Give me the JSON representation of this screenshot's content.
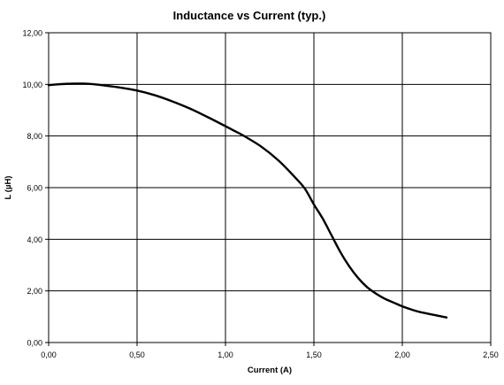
{
  "chart_data": {
    "type": "line",
    "title": "Inductance vs Current (typ.)",
    "xlabel": "Current (A)",
    "ylabel": "L (µH)",
    "xlim": [
      0,
      2.5
    ],
    "ylim": [
      0,
      12
    ],
    "x_ticks": [
      0,
      0.5,
      1.0,
      1.5,
      2.0,
      2.5
    ],
    "x_tick_labels": [
      "0,00",
      "0,50",
      "1,00",
      "1,50",
      "2,00",
      "2,50"
    ],
    "y_ticks": [
      0,
      2,
      4,
      6,
      8,
      10,
      12
    ],
    "y_tick_labels": [
      "0,00",
      "2,00",
      "4,00",
      "6,00",
      "8,00",
      "10,00",
      "12,00"
    ],
    "grid": true,
    "legend": "none",
    "line_color": "#000000",
    "series": [
      {
        "x": [
          0.0,
          0.05,
          0.1,
          0.15,
          0.2,
          0.25,
          0.3,
          0.4,
          0.5,
          0.6,
          0.7,
          0.8,
          0.9,
          1.0,
          1.05,
          1.1,
          1.2,
          1.3,
          1.4,
          1.45,
          1.5,
          1.55,
          1.6,
          1.65,
          1.7,
          1.75,
          1.8,
          1.85,
          1.9,
          1.95,
          2.0,
          2.05,
          2.1,
          2.2,
          2.25
        ],
        "y": [
          9.97,
          10.0,
          10.02,
          10.03,
          10.03,
          10.01,
          9.97,
          9.88,
          9.76,
          9.58,
          9.34,
          9.06,
          8.73,
          8.38,
          8.2,
          8.02,
          7.6,
          7.05,
          6.35,
          5.95,
          5.35,
          4.8,
          4.15,
          3.5,
          2.95,
          2.5,
          2.15,
          1.9,
          1.7,
          1.55,
          1.4,
          1.28,
          1.18,
          1.04,
          0.97
        ]
      }
    ]
  }
}
